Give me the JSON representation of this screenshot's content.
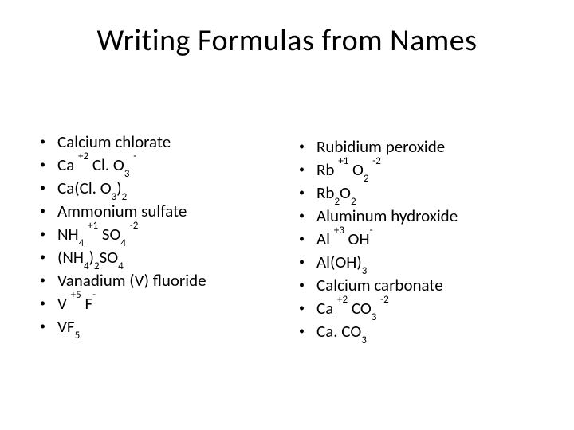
{
  "title": "Writing Formulas from Names",
  "typography": {
    "title_fontsize": 38,
    "body_fontsize": 21,
    "font_family": "Calibri, Arial, sans-serif",
    "text_color": "#000000",
    "background_color": "#ffffff"
  },
  "left_column": [
    {
      "type": "plain",
      "text": "Calcium chlorate"
    },
    {
      "type": "chem",
      "parts": [
        "Ca ",
        {
          "sup": "+2"
        },
        " Cl. O",
        {
          "sub": "3"
        },
        " ",
        {
          "sup": "-"
        }
      ]
    },
    {
      "type": "chem",
      "parts": [
        "Ca(Cl. O",
        {
          "sub": "3"
        },
        ")",
        {
          "sub": "2"
        }
      ]
    },
    {
      "type": "plain",
      "text": "Ammonium sulfate"
    },
    {
      "type": "chem",
      "parts": [
        "NH",
        {
          "sub": "4"
        },
        " ",
        {
          "sup": "+1"
        },
        " SO",
        {
          "sub": "4"
        },
        " ",
        {
          "sup": "-2"
        }
      ]
    },
    {
      "type": "chem",
      "parts": [
        "(NH",
        {
          "sub": "4"
        },
        ")",
        {
          "sub": "2"
        },
        "SO",
        {
          "sub": "4"
        }
      ]
    },
    {
      "type": "plain",
      "text": "Vanadium (V) fluoride"
    },
    {
      "type": "chem",
      "parts": [
        "V ",
        {
          "sup": "+5"
        },
        " F",
        {
          "sup": "-"
        }
      ]
    },
    {
      "type": "chem",
      "parts": [
        "VF",
        {
          "sub": "5"
        }
      ]
    }
  ],
  "right_column": [
    {
      "type": "plain",
      "text": "Rubidium peroxide"
    },
    {
      "type": "chem",
      "parts": [
        "Rb ",
        {
          "sup": "+1"
        },
        " O",
        {
          "sub": "2"
        },
        " ",
        {
          "sup": "-2"
        }
      ]
    },
    {
      "type": "chem",
      "parts": [
        "Rb",
        {
          "sub": "2"
        },
        "O",
        {
          "sub": "2"
        }
      ]
    },
    {
      "type": "plain",
      "text": "Aluminum hydroxide"
    },
    {
      "type": "chem",
      "parts": [
        "Al ",
        {
          "sup": "+3"
        },
        " OH",
        {
          "sup": "-"
        }
      ]
    },
    {
      "type": "chem",
      "parts": [
        "Al(OH)",
        {
          "sub": "3"
        }
      ]
    },
    {
      "type": "plain",
      "text": "Calcium carbonate"
    },
    {
      "type": "chem",
      "parts": [
        "Ca ",
        {
          "sup": "+2"
        },
        " CO",
        {
          "sub": "3"
        },
        " ",
        {
          "sup": "-2"
        }
      ]
    },
    {
      "type": "chem",
      "parts": [
        "Ca. CO",
        {
          "sub": "3"
        }
      ]
    }
  ],
  "bullet_glyph": "•"
}
